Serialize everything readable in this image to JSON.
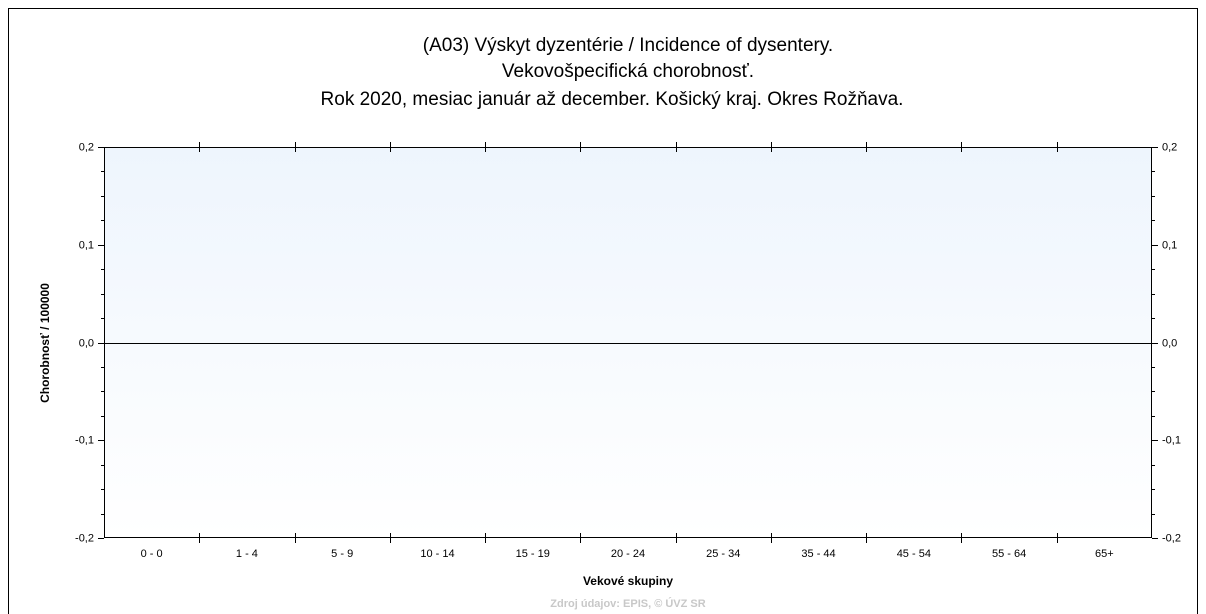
{
  "chart_data": {
    "type": "bar",
    "title_lines": [
      "(A03) Výskyt dyzentérie / Incidence of dysentery.",
      "Vekovošpecifická chorobnosť.",
      "Rok 2020, mesiac január až december. Košický kraj. Okres Rožňava."
    ],
    "y_label": "Chorobnosť / 100000",
    "x_label": "Vekové skupiny",
    "source": "Zdroj údajov: EPIS, © ÚVZ SR",
    "categories": [
      "0 - 0",
      "1 - 4",
      "5 - 9",
      "10 - 14",
      "15 - 19",
      "20 - 24",
      "25 - 34",
      "35 - 44",
      "45 - 54",
      "55 - 64",
      "65+"
    ],
    "values": [
      0,
      0,
      0,
      0,
      0,
      0,
      0,
      0,
      0,
      0,
      0
    ],
    "color": "#4472c4",
    "ylim": [
      -0.2,
      0.2
    ],
    "yticks": [
      {
        "value": -0.2,
        "label": "-0,2"
      },
      {
        "value": -0.1,
        "label": "-0,1"
      },
      {
        "value": 0,
        "label": "0,0"
      },
      {
        "value": 0.1,
        "label": "0,1"
      },
      {
        "value": 0.2,
        "label": "0,2"
      }
    ],
    "y2lim": [
      -0.2,
      0.2
    ],
    "y2ticks": [
      {
        "value": -0.2,
        "label": "-0,2"
      },
      {
        "value": -0.1,
        "label": "-0,1"
      },
      {
        "value": 0,
        "label": "0,0"
      },
      {
        "value": 0.1,
        "label": "0,1"
      },
      {
        "value": 0.2,
        "label": "0,2"
      }
    ]
  }
}
